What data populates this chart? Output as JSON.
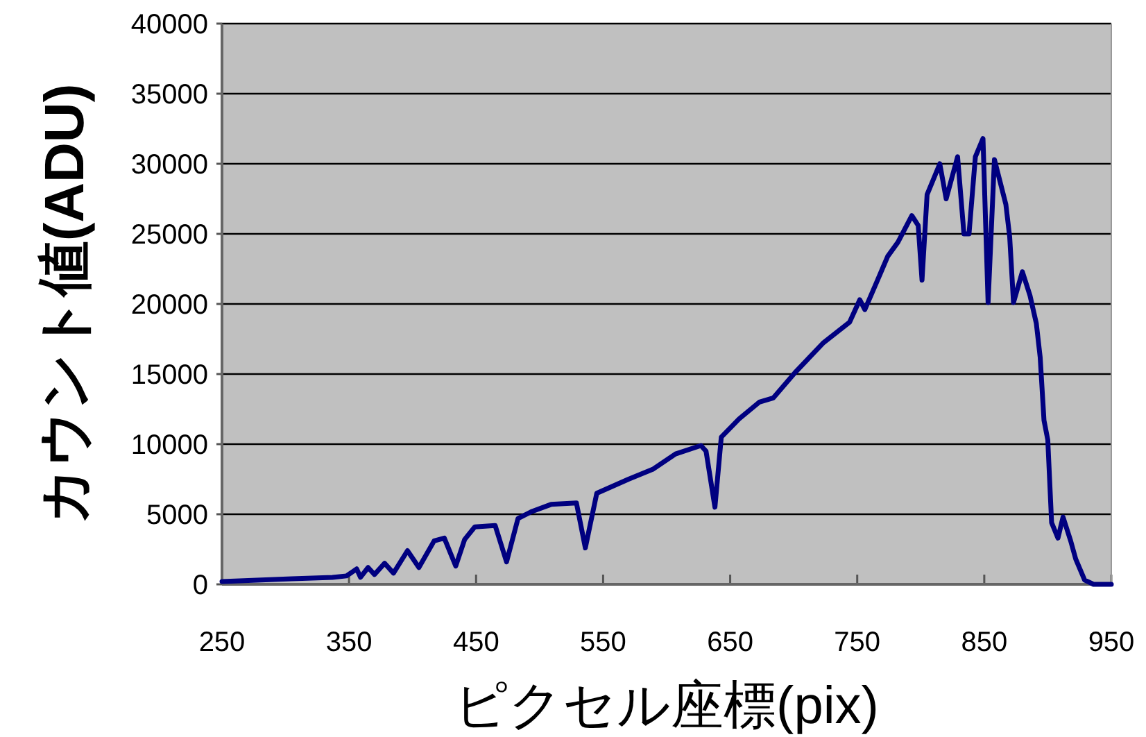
{
  "chart_data": {
    "type": "line",
    "xlabel": "ピクセル座標(pix)",
    "ylabel": "カウント値(ADU)",
    "xlim": [
      250,
      950
    ],
    "ylim": [
      0,
      40000
    ],
    "xticks": [
      250,
      350,
      450,
      550,
      650,
      750,
      850,
      950
    ],
    "yticks": [
      0,
      5000,
      10000,
      15000,
      20000,
      25000,
      30000,
      35000,
      40000
    ],
    "grid": "y",
    "x": [
      250,
      305,
      337,
      348,
      356,
      359,
      365,
      370,
      378,
      385,
      396,
      405,
      417,
      425,
      434,
      441,
      449,
      465,
      474,
      483,
      494,
      509,
      529,
      536,
      545,
      570,
      589,
      607,
      627,
      631,
      638,
      643,
      657,
      673,
      684,
      701,
      723,
      744,
      752,
      756,
      766,
      774,
      782,
      793,
      798,
      801,
      805,
      815,
      820,
      829,
      834,
      838,
      843,
      849,
      853,
      858,
      867,
      870,
      873,
      880,
      886,
      891,
      894,
      897,
      900,
      903,
      908,
      912,
      918,
      922,
      929,
      936,
      950
    ],
    "series": [
      {
        "color": "#000080",
        "values": [
          200,
          400,
          500,
          600,
          1100,
          500,
          1200,
          700,
          1500,
          800,
          2400,
          1200,
          3100,
          3300,
          1300,
          3200,
          4100,
          4200,
          1600,
          4700,
          5200,
          5700,
          5800,
          2600,
          6500,
          7500,
          8200,
          9300,
          9900,
          9500,
          5500,
          10500,
          11800,
          13000,
          13300,
          15100,
          17200,
          18700,
          20300,
          19600,
          21700,
          23400,
          24400,
          26300,
          25600,
          21700,
          27800,
          30000,
          27500,
          30500,
          25000,
          25000,
          30500,
          31800,
          20100,
          30300,
          27100,
          24800,
          20100,
          22300,
          20600,
          18600,
          16200,
          11700,
          10300,
          4400,
          3300,
          4800,
          3100,
          1800,
          300,
          0,
          0
        ]
      }
    ]
  }
}
